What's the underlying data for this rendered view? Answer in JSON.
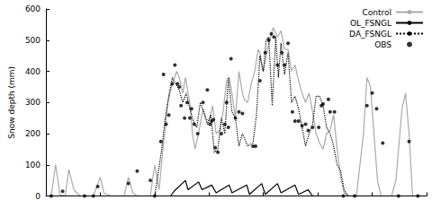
{
  "chart_data": {
    "type": "line",
    "y_label": "Snow depth (mm)",
    "xlim": [
      0,
      434
    ],
    "xticks": [
      0,
      62,
      124,
      186,
      248,
      310,
      372,
      434
    ],
    "ylim": [
      0,
      600
    ],
    "yticks": [
      0,
      100,
      200,
      300,
      400,
      500,
      600
    ],
    "grid": false,
    "legend": "top-right",
    "tick_labels": "y",
    "series": [
      {
        "name": "Control",
        "type": "line",
        "color": "#aaaaaa",
        "line_style": "solid",
        "x": [
          0,
          6,
          11,
          16,
          22,
          26,
          32,
          39,
          54,
          62,
          66,
          74,
          89,
          94,
          99,
          104,
          119,
          124,
          129,
          134,
          139,
          144,
          149,
          152,
          156,
          159,
          164,
          167,
          170,
          174,
          179,
          182,
          186,
          190,
          194,
          198,
          202,
          206,
          209,
          212,
          216,
          220,
          224,
          226,
          230,
          234,
          238,
          242,
          244,
          247,
          250,
          254,
          259,
          264,
          268,
          272,
          276,
          280,
          284,
          288,
          292,
          296,
          300,
          304,
          308,
          312,
          316,
          320,
          324,
          328,
          332,
          336,
          340,
          346,
          354,
          362,
          366,
          370,
          374,
          378,
          382,
          394,
          399,
          406,
          410,
          414,
          418,
          434
        ],
        "values": [
          0,
          0,
          100,
          5,
          0,
          85,
          20,
          0,
          0,
          60,
          10,
          0,
          0,
          60,
          10,
          0,
          0,
          100,
          20,
          170,
          300,
          360,
          400,
          380,
          330,
          380,
          300,
          200,
          150,
          200,
          280,
          250,
          240,
          290,
          200,
          210,
          270,
          370,
          380,
          330,
          250,
          400,
          330,
          310,
          300,
          360,
          400,
          470,
          460,
          400,
          430,
          490,
          540,
          510,
          530,
          470,
          470,
          400,
          420,
          370,
          330,
          300,
          330,
          270,
          200,
          170,
          150,
          200,
          210,
          260,
          150,
          60,
          10,
          0,
          0,
          200,
          380,
          350,
          200,
          50,
          0,
          0,
          50,
          280,
          330,
          200,
          0,
          0
        ]
      },
      {
        "name": "OL_FSNGL",
        "type": "line",
        "color": "#000000",
        "line_style": "solid",
        "x": [
          0,
          134,
          142,
          146,
          159,
          162,
          174,
          178,
          189,
          194,
          209,
          212,
          229,
          232,
          246,
          250,
          264,
          268,
          284,
          288,
          299,
          304,
          434
        ],
        "values": [
          0,
          0,
          0,
          15,
          50,
          20,
          45,
          20,
          35,
          10,
          35,
          10,
          35,
          5,
          40,
          5,
          40,
          10,
          35,
          5,
          20,
          0,
          0
        ]
      },
      {
        "name": "DA_FSNGL",
        "type": "line",
        "color": "#000000",
        "line_style": "dotted",
        "x": [
          0,
          124,
          132,
          136,
          140,
          144,
          148,
          152,
          156,
          160,
          164,
          168,
          172,
          176,
          180,
          184,
          188,
          192,
          196,
          200,
          204,
          208,
          212,
          216,
          220,
          224,
          230,
          236,
          240,
          244,
          248,
          251,
          254,
          258,
          262,
          265,
          268,
          272,
          276,
          280,
          284,
          288,
          292,
          296,
          300,
          304,
          308,
          312,
          316,
          320,
          324,
          328,
          332,
          336,
          340,
          344,
          434
        ],
        "values": [
          0,
          0,
          150,
          250,
          320,
          380,
          360,
          340,
          300,
          330,
          280,
          240,
          220,
          300,
          270,
          230,
          260,
          140,
          150,
          250,
          200,
          380,
          270,
          250,
          160,
          200,
          160,
          170,
          260,
          450,
          400,
          500,
          510,
          290,
          510,
          380,
          490,
          390,
          460,
          300,
          320,
          280,
          220,
          160,
          200,
          230,
          320,
          320,
          290,
          220,
          200,
          160,
          100,
          80,
          20,
          0,
          0
        ]
      },
      {
        "name": "OBS",
        "type": "scatter",
        "color": "#000000",
        "marker": "circle",
        "x": [
          6,
          19,
          44,
          54,
          59,
          94,
          104,
          119,
          124,
          131,
          134,
          137,
          140,
          144,
          147,
          150,
          152,
          154,
          158,
          161,
          164,
          166,
          169,
          173,
          179,
          184,
          187,
          189,
          191,
          193,
          196,
          200,
          204,
          206,
          208,
          211,
          216,
          220,
          224,
          236,
          239,
          244,
          250,
          254,
          257,
          260,
          264,
          269,
          272,
          276,
          281,
          284,
          288,
          292,
          296,
          299,
          304,
          311,
          314,
          316,
          322,
          324,
          329,
          339,
          352,
          366,
          372,
          377,
          384,
          402,
          414,
          424
        ],
        "values": [
          0,
          15,
          0,
          0,
          30,
          40,
          80,
          50,
          0,
          175,
          390,
          230,
          260,
          360,
          420,
          360,
          350,
          290,
          250,
          300,
          250,
          280,
          230,
          200,
          300,
          340,
          230,
          240,
          245,
          155,
          140,
          200,
          230,
          300,
          220,
          440,
          250,
          270,
          265,
          160,
          160,
          370,
          460,
          500,
          520,
          510,
          420,
          460,
          420,
          490,
          270,
          240,
          240,
          225,
          230,
          210,
          220,
          220,
          290,
          295,
          310,
          270,
          270,
          0,
          0,
          290,
          330,
          280,
          170,
          0,
          175,
          0
        ]
      }
    ]
  }
}
